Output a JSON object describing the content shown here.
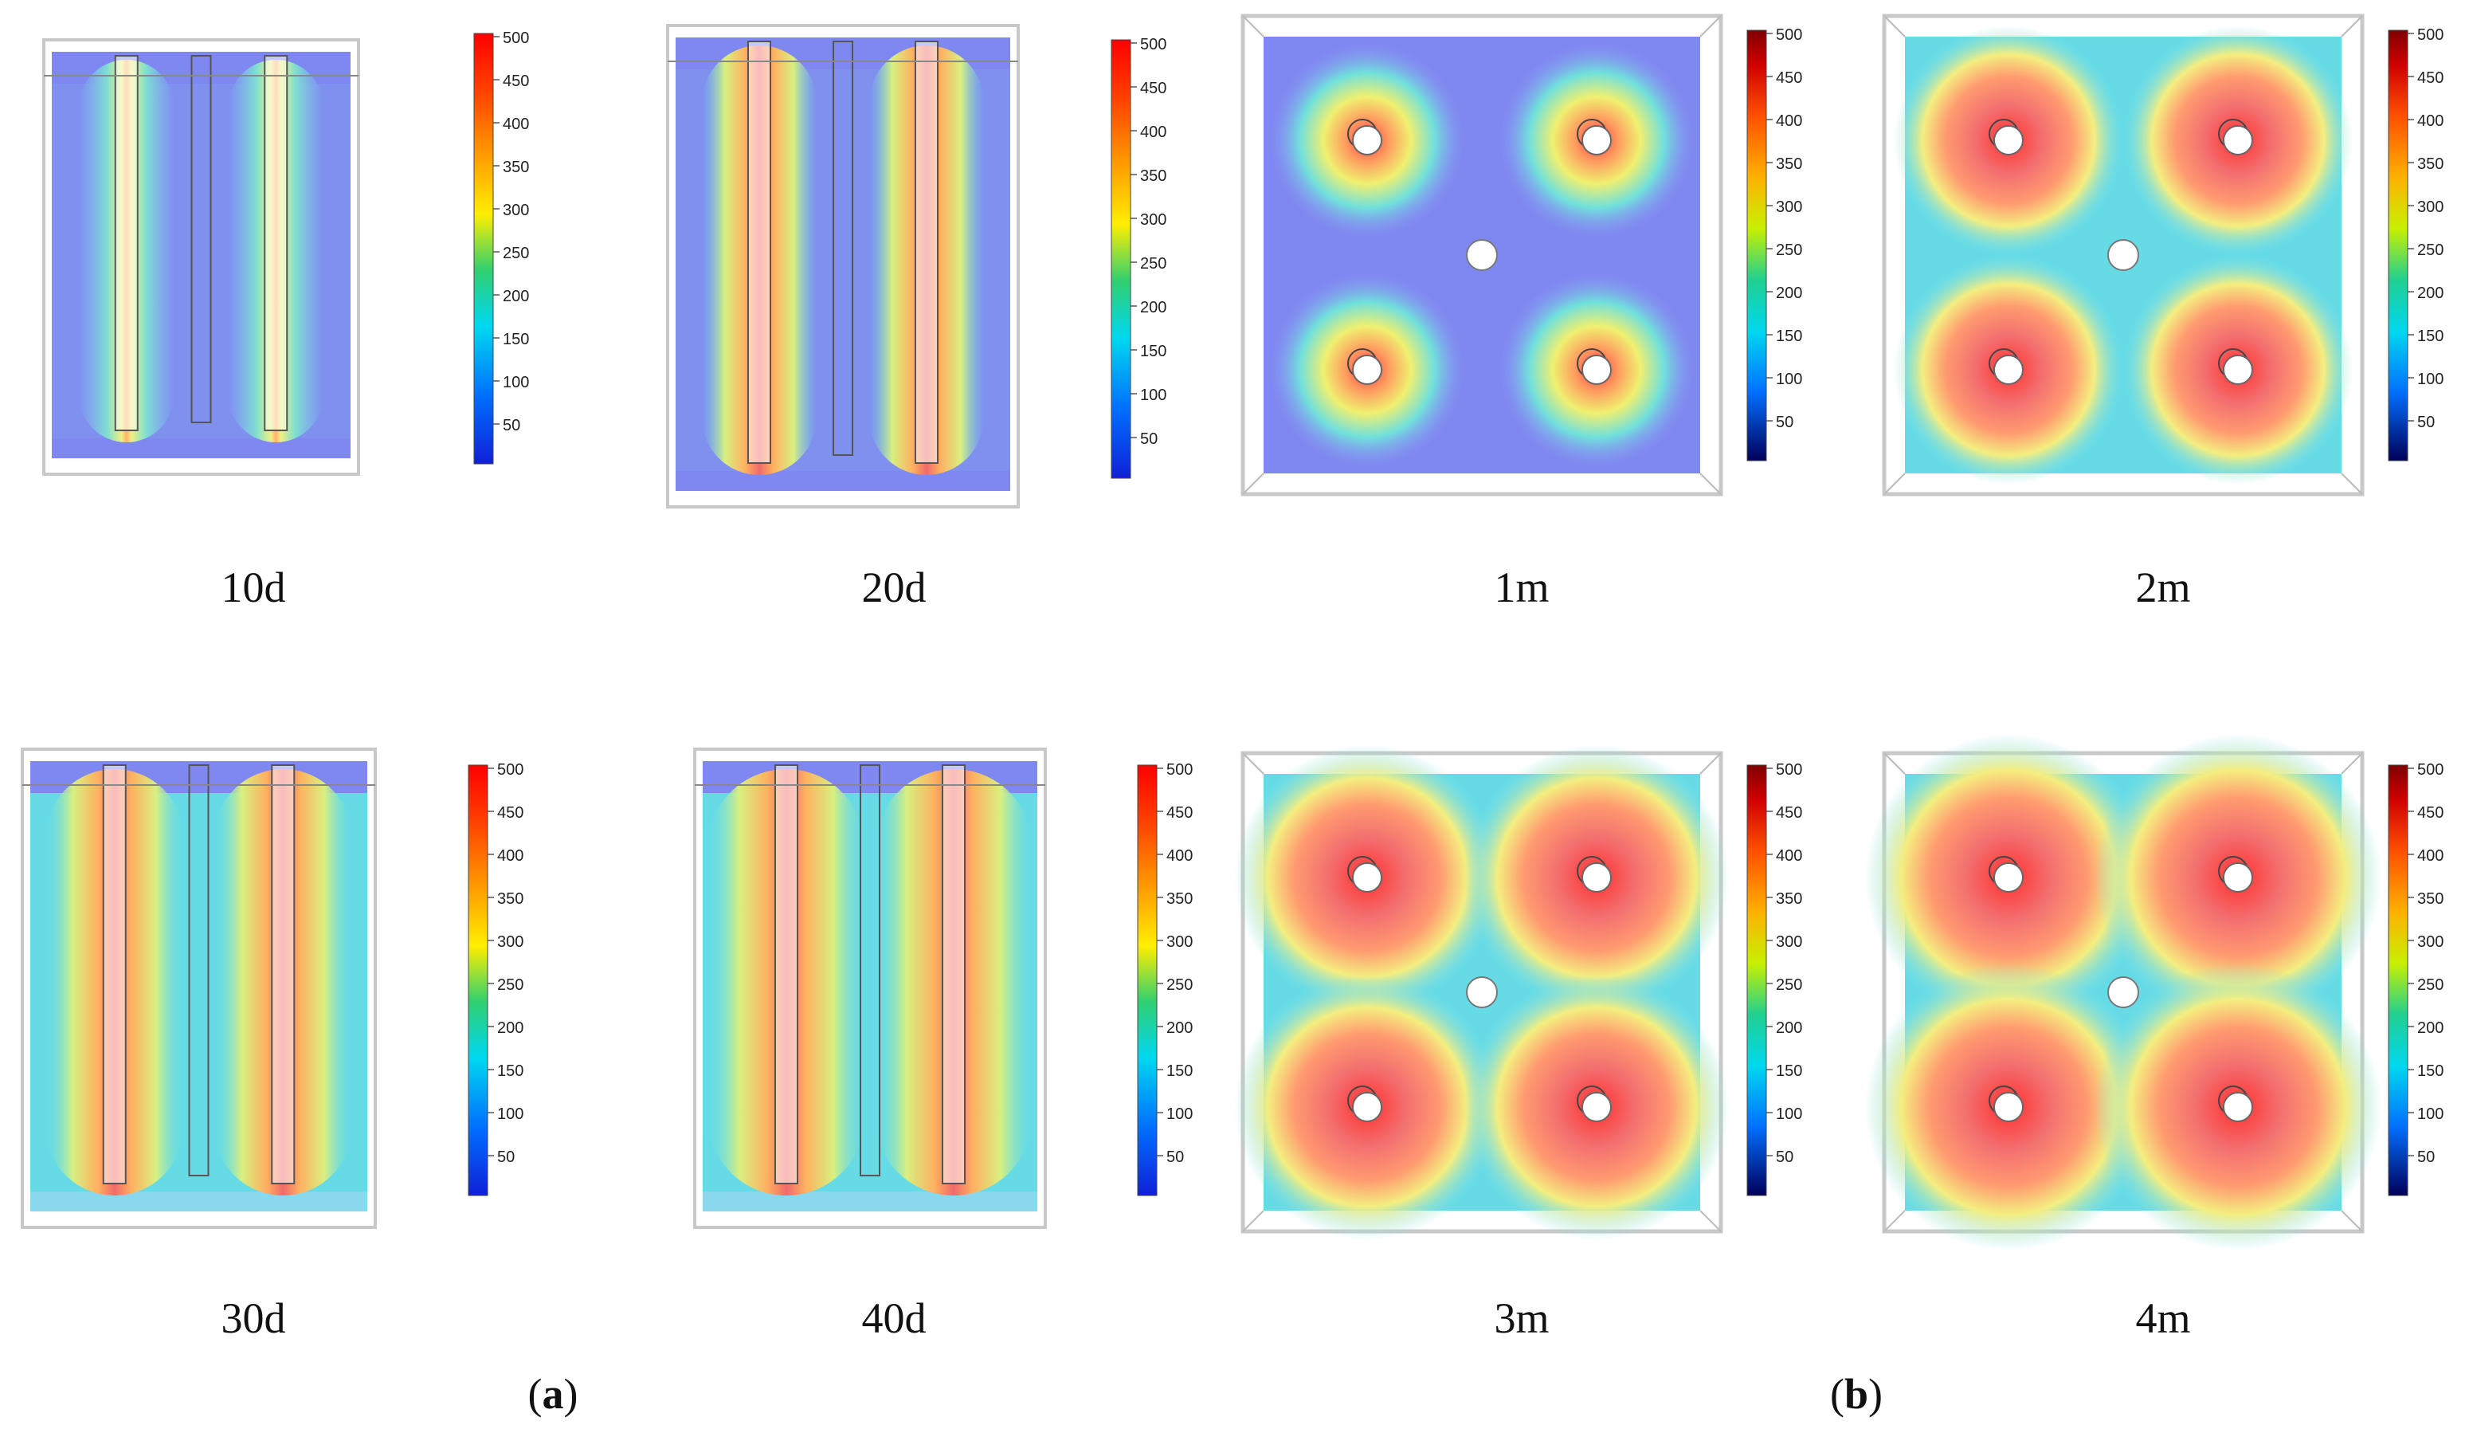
{
  "colorbar": {
    "ticks": [
      "500",
      "450",
      "400",
      "350",
      "300",
      "250",
      "200",
      "150",
      "100",
      "50"
    ],
    "colors": [
      "#7f0000",
      "#ff0000",
      "#ff8c00",
      "#ffff00",
      "#00d060",
      "#00e5ff",
      "#0064ff",
      "#00008f"
    ]
  },
  "side_panels": [
    {
      "label": "10d",
      "level": 0.25
    },
    {
      "label": "20d",
      "level": 0.45
    },
    {
      "label": "30d",
      "level": 0.7
    },
    {
      "label": "40d",
      "level": 0.9
    }
  ],
  "top_panels": [
    {
      "label": "1m",
      "level": 0.35
    },
    {
      "label": "2m",
      "level": 0.6
    },
    {
      "label": "3m",
      "level": 0.85
    },
    {
      "label": "4m",
      "level": 1.0
    }
  ],
  "group_labels": {
    "a": "a",
    "b": "b"
  },
  "palette": {
    "background_blue": "#7f88f0",
    "cyan_field": "#66dbe6",
    "hot_core": "#f07a7a",
    "frame_gray": "#c8c8c8"
  }
}
